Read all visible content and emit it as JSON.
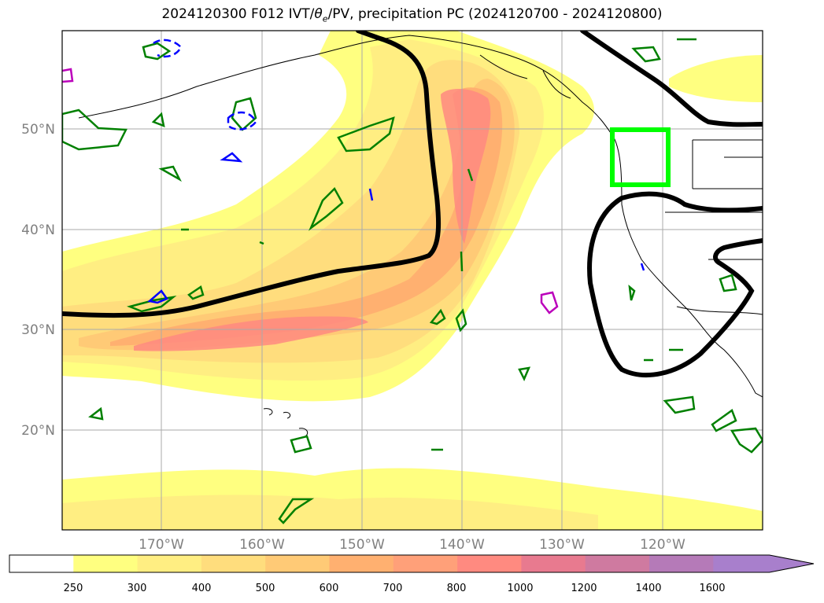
{
  "title": "2024120300 F012 IVT/θe/PV, precipitation PC (2024120700 - 2024120800)",
  "title_parts": {
    "prefix": "2024120300 F012 IVT/",
    "theta": "θ",
    "theta_sub": "e",
    "suffix": "/PV, precipitation PC (2024120700 - 2024120800)"
  },
  "map": {
    "lat_labels": [
      "50°N",
      "40°N",
      "30°N",
      "20°N"
    ],
    "lon_labels": [
      "170°W",
      "160°W",
      "150°W",
      "140°W",
      "130°W",
      "120°W"
    ],
    "highlight_box_color": "#00ff00",
    "contour_colors": {
      "theta_e": "#000000",
      "precip": "#008000",
      "pv_negative": "#0000ff",
      "pv_other": "#bb00bb"
    }
  },
  "colorbar": {
    "ticks": [
      "250",
      "300",
      "400",
      "500",
      "600",
      "700",
      "800",
      "1000",
      "1200",
      "1400",
      "1600"
    ],
    "colors": [
      "#ffffff",
      "#ffff80",
      "#ffee82",
      "#ffdd7d",
      "#ffca76",
      "#ffb070",
      "#ffa079",
      "#ff8a80",
      "#e87a8f",
      "#cf7aa0",
      "#b57ab8",
      "#a87fcc"
    ]
  }
}
